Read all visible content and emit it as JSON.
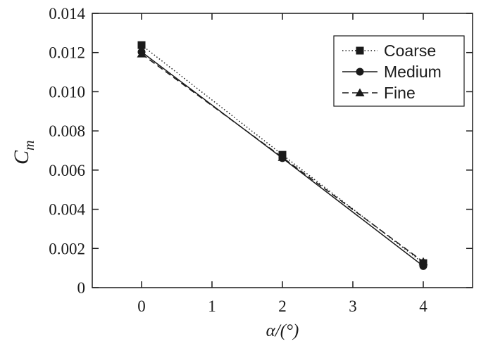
{
  "chart_data": {
    "type": "line",
    "xlabel": "α/(°)",
    "ylabel_main": "C",
    "ylabel_sub": "m",
    "xlim": [
      -0.7,
      4.7
    ],
    "ylim": [
      0,
      0.014
    ],
    "xticks": [
      0,
      1,
      2,
      3,
      4
    ],
    "xtick_labels": [
      "0",
      "1",
      "2",
      "3",
      "4"
    ],
    "yticks": [
      0,
      0.002,
      0.004,
      0.006,
      0.008,
      0.01,
      0.012,
      0.014
    ],
    "ytick_labels": [
      "0",
      "0.002",
      "0.004",
      "0.006",
      "0.008",
      "0.010",
      "0.012",
      "0.014"
    ],
    "grid": false,
    "legend_position": "top-right",
    "x": [
      0,
      2,
      4
    ],
    "series": [
      {
        "name": "Coarse",
        "values": [
          0.01238,
          0.00678,
          0.00125
        ],
        "marker": "square",
        "dash": "dotted",
        "color": "#1a1a1a"
      },
      {
        "name": "Medium",
        "values": [
          0.01203,
          0.00661,
          0.0011
        ],
        "marker": "circle",
        "dash": "solid",
        "color": "#1a1a1a"
      },
      {
        "name": "Fine",
        "values": [
          0.01193,
          0.00665,
          0.00132
        ],
        "marker": "triangle",
        "dash": "dashed",
        "color": "#1a1a1a"
      }
    ]
  }
}
